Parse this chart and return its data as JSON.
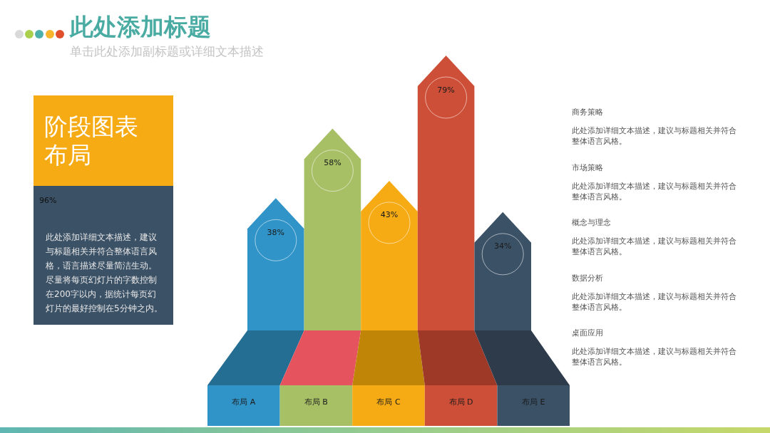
{
  "chart_data": {
    "type": "bar",
    "title": "此处添加标题",
    "subtitle": "单击此处添加副标题或详细文本描述",
    "categories": [
      "布局 A",
      "布局 B",
      "布局 C",
      "布局 D",
      "布局 E"
    ],
    "values": [
      38,
      58,
      43,
      79,
      34
    ],
    "colors": [
      "#3194c8",
      "#a7c066",
      "#f6ab15",
      "#cd4f37",
      "#3b5166"
    ],
    "value_labels": [
      "38%",
      "58%",
      "43%",
      "79%",
      "34%"
    ],
    "annotations": [
      "阶段图表布局",
      "96%",
      "此处添加详细文本描述，建议与标题相关并符合整体语言风格，语言描述尽量简洁生动。尽量将每页幻灯片的字数控制在200字以内，据统计每页幻灯片的最好控制在5分钟之内。",
      "商务策略",
      "此处添加详细文本描述，建议与标题相关并符合整体语言风格。",
      "市场策略",
      "此处添加详细文本描述，建议与标题相关并符合整体语言风格。",
      "概念与理念",
      "此处添加详细文本描述，建议与标题相关并符合整体语言风格。",
      "数据分析",
      "此处添加详细文本描述，建议与标题相关并符合整体语言风格。",
      "桌面应用",
      "此处添加详细文本描述，建议与标题相关并符合整体语言风格。"
    ]
  }
}
